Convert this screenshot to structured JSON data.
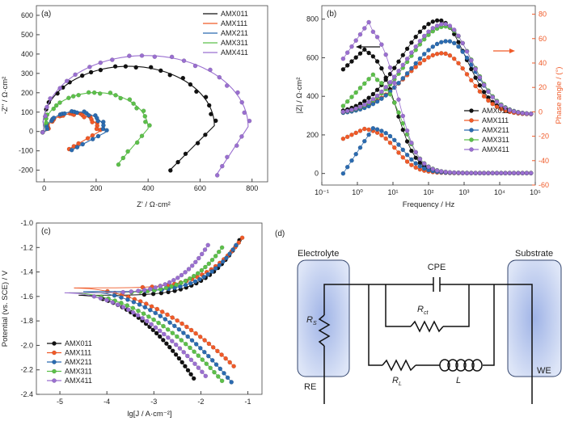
{
  "series_names": [
    "AMX011",
    "AMX111",
    "AMX211",
    "AMX311",
    "AMX411"
  ],
  "series_colors": [
    "#111111",
    "#f05a28",
    "#2b6bb0",
    "#5cc04a",
    "#9a6fd0"
  ],
  "chart_data": [
    {
      "type": "scatter",
      "panel_label": "(a)",
      "xlabel": "Z' / Ω·cm²",
      "ylabel": "-Z'' / Ω·cm²",
      "xlim": [
        -30,
        860
      ],
      "ylim": [
        -260,
        650
      ],
      "x_ticks": [
        0,
        200,
        400,
        600,
        800
      ],
      "y_ticks": [
        -200,
        -100,
        0,
        100,
        200,
        300,
        400,
        500,
        600
      ],
      "legend_position": "top-right",
      "series": [
        {
          "name": "AMX011",
          "center": [
            325,
            30
          ],
          "radius": 330,
          "arc_deg": [
            170,
            10
          ],
          "tail_end": [
            480,
            -205
          ]
        },
        {
          "name": "AMX111",
          "center": [
            110,
            -2
          ],
          "radius": 100,
          "arc_deg": [
            178,
            2
          ],
          "tail_end": [
            90,
            -95
          ]
        },
        {
          "name": "AMX211",
          "center": [
            120,
            -5
          ],
          "radius": 115,
          "arc_deg": [
            178,
            2
          ],
          "tail_end": [
            100,
            -100
          ]
        },
        {
          "name": "AMX311",
          "center": [
            200,
            15
          ],
          "radius": 200,
          "arc_deg": [
            172,
            8
          ],
          "tail_end": [
            280,
            -175
          ]
        },
        {
          "name": "AMX411",
          "center": [
            390,
            25
          ],
          "radius": 395,
          "arc_deg": [
            168,
            12
          ],
          "tail_end": [
            660,
            -230
          ]
        }
      ]
    },
    {
      "type": "line",
      "panel_label": "(b)",
      "xlabel": "Frequency / Hz",
      "ylabel_left": "|Z| / Ω·cm²",
      "ylabel_right": "Phase angle / (°)",
      "x_scale": "log",
      "xlim": [
        0.1,
        100000
      ],
      "ylim_left": [
        -60,
        870
      ],
      "ylim_right": [
        -60,
        87
      ],
      "x_ticks": [
        "10⁻¹",
        "10⁰",
        "10¹",
        "10²",
        "10³",
        "10⁴",
        "10⁵"
      ],
      "left_ticks": [
        0,
        200,
        400,
        600,
        800
      ],
      "right_ticks": [
        -60,
        -40,
        -20,
        0,
        20,
        40,
        60,
        80
      ],
      "legend_position": "center-right",
      "impedance_peak_freq_hz": [
        2,
        2,
        3,
        3,
        2.2
      ],
      "impedance_peak": [
        660,
        240,
        245,
        520,
        790
      ],
      "impedance_low_freq": [
        540,
        180,
        0,
        350,
        595
      ],
      "phase_peak_freq_hz": [
        200,
        250,
        350,
        300,
        280
      ],
      "phase_peak_deg": [
        75,
        48,
        58,
        70,
        72
      ]
    },
    {
      "type": "line",
      "panel_label": "(c)",
      "xlabel": "lg[J / A·cm⁻²]",
      "ylabel": "Potential (vs. SCE) / V",
      "xlim": [
        -5.5,
        -0.7
      ],
      "ylim": [
        -2.4,
        -1.0
      ],
      "x_ticks": [
        -5,
        -4,
        -3,
        -2,
        -1
      ],
      "y_ticks": [
        -2.4,
        -2.2,
        -2.0,
        -1.8,
        -1.6,
        -1.4,
        -1.2,
        -1.0
      ],
      "legend_position": "bottom-left",
      "series": [
        {
          "name": "AMX011",
          "corr_potential": -1.59,
          "corr_lgJ": -4.6,
          "cathodic_end": [
            -2.15,
            -2.27
          ],
          "anodic_end": [
            -1.18,
            -1.14
          ]
        },
        {
          "name": "AMX111",
          "corr_potential": -1.53,
          "corr_lgJ": -4.7,
          "cathodic_end": [
            -1.3,
            -2.17
          ],
          "anodic_end": [
            -1.12,
            -1.12
          ]
        },
        {
          "name": "AMX211",
          "corr_potential": -1.56,
          "corr_lgJ": -4.5,
          "cathodic_end": [
            -1.35,
            -2.3
          ],
          "anodic_end": [
            -1.25,
            -1.18
          ]
        },
        {
          "name": "AMX311",
          "corr_potential": -1.57,
          "corr_lgJ": -4.8,
          "cathodic_end": [
            -1.55,
            -2.29
          ],
          "anodic_end": [
            -1.55,
            -1.2
          ]
        },
        {
          "name": "AMX411",
          "corr_potential": -1.57,
          "corr_lgJ": -4.9,
          "cathodic_end": [
            -1.9,
            -2.25
          ],
          "anodic_end": [
            -1.85,
            -1.18
          ]
        }
      ]
    }
  ],
  "diagram": {
    "panel_label": "(d)",
    "electrolyte_label": "Electrolyte",
    "substrate_label": "Substrate",
    "cpe_label": "CPE",
    "rs_label": "R",
    "rs_sub": "S",
    "rct_label": "R",
    "rct_sub": "ct",
    "rl_label": "R",
    "rl_sub": "L",
    "l_label": "L",
    "re_label": "RE",
    "we_label": "WE"
  }
}
